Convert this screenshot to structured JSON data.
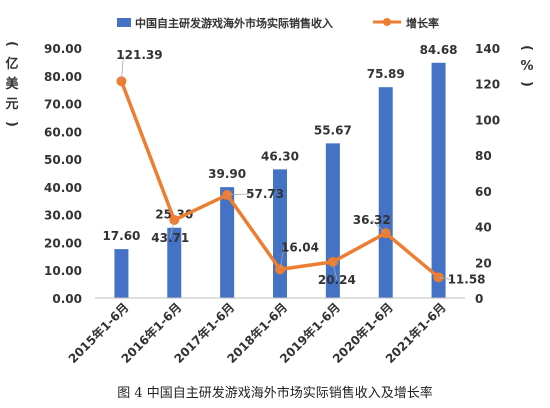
{
  "caption": "图 4  中国自主研发游戏海外市场实际销售收入及增长率",
  "chart_data": {
    "type": "bar",
    "categories": [
      "2015年1-6月",
      "2016年1-6月",
      "2017年1-6月",
      "2018年1-6月",
      "2019年1-6月",
      "2020年1-6月",
      "2021年1-6月"
    ],
    "series": [
      {
        "name": "中国自主研发游戏海外市场实际销售收入",
        "type": "bar",
        "axis": "left",
        "color": "#4472C4",
        "values": [
          17.6,
          25.3,
          39.9,
          46.3,
          55.67,
          75.89,
          84.68
        ],
        "labels": [
          "17.60",
          "25.30",
          "39.90",
          "46.30",
          "55.67",
          "75.89",
          "84.68"
        ]
      },
      {
        "name": "增长率",
        "type": "line",
        "axis": "right",
        "color": "#ED7D31",
        "values": [
          121.39,
          43.71,
          57.73,
          16.04,
          20.24,
          36.32,
          11.58
        ],
        "labels": [
          "121.39",
          "43.71",
          "57.73",
          "16.04",
          "20.24",
          "36.32",
          "11.58"
        ]
      }
    ],
    "ylabel_left": "亿美元",
    "ylabel_right": "%",
    "ylim_left": [
      0,
      90
    ],
    "yticks_left": [
      "0.00",
      "10.00",
      "20.00",
      "30.00",
      "40.00",
      "50.00",
      "60.00",
      "70.00",
      "80.00",
      "90.00"
    ],
    "ylim_right": [
      0,
      140
    ],
    "yticks_right": [
      "0",
      "20",
      "40",
      "60",
      "80",
      "100",
      "120",
      "140"
    ],
    "legend_position": "top",
    "grid": false
  }
}
